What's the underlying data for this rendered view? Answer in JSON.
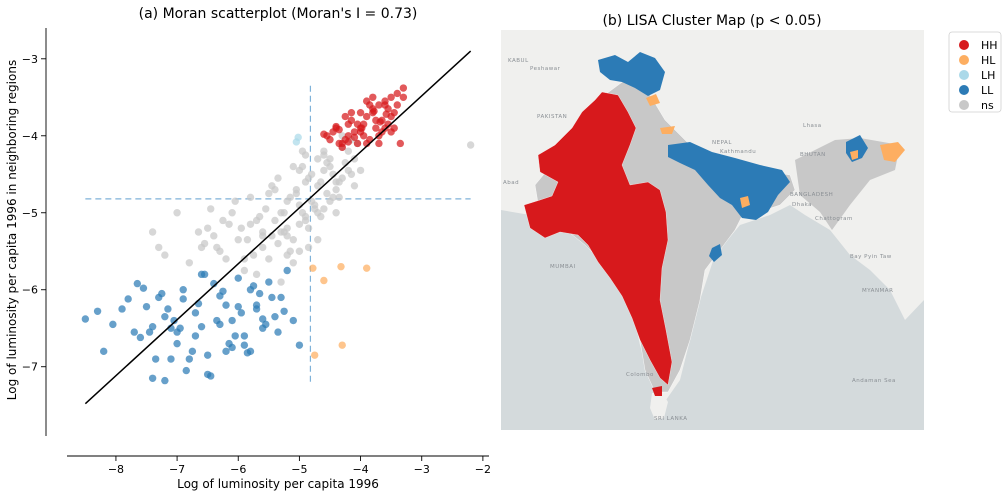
{
  "chart_data": [
    {
      "type": "scatter",
      "title": "(a) Moran scatterplot (Moran's I = 0.73)",
      "xlabel": "Log of luminosity per capita 1996",
      "ylabel": "Log of luminosity per capita 1996 in neighboring regions",
      "xlim": [
        -8.8,
        -1.9
      ],
      "ylim": [
        -7.9,
        -2.6
      ],
      "xticks": [
        -8,
        -7,
        -6,
        -5,
        -4,
        -3,
        -2
      ],
      "yticks": [
        -7,
        -6,
        -5,
        -4,
        -3
      ],
      "xtick_labels": [
        "−8",
        "−7",
        "−6",
        "−5",
        "−4",
        "−3",
        "−2"
      ],
      "ytick_labels": [
        "−7",
        "−6",
        "−5",
        "−4",
        "−3"
      ],
      "mean_lines": {
        "x": -4.82,
        "y": -4.82
      },
      "regression_line": {
        "x": [
          -8.5,
          -2.2
        ],
        "y": [
          -7.48,
          -2.9
        ]
      },
      "grid": false,
      "series": [
        {
          "key": "HH",
          "color": "#d7191c",
          "x": [
            -4.6,
            -4.5,
            -4.4,
            -4.3,
            -4.2,
            -4.1,
            -4.0,
            -3.9,
            -3.8,
            -3.7,
            -3.6,
            -3.5,
            -3.4,
            -3.3,
            -4.55,
            -4.35,
            -4.15,
            -3.95,
            -3.75,
            -3.55,
            -3.45,
            -3.65,
            -3.85,
            -4.05,
            -4.25,
            -4.45,
            -3.5,
            -3.6,
            -3.7,
            -3.8,
            -3.9,
            -4.0,
            -4.1,
            -4.2,
            -4.3,
            -3.4,
            -3.35,
            -3.55,
            -3.75,
            -3.95,
            -4.15,
            -4.35,
            -3.45,
            -3.65,
            -3.85,
            -4.05,
            -4.25,
            -3.6,
            -3.8,
            -4.0,
            -3.7,
            -3.9,
            -3.5,
            -4.4,
            -4.2,
            -3.3,
            -3.58,
            -3.78,
            -3.98,
            -3.68
          ],
          "y": [
            -3.98,
            -4.05,
            -3.9,
            -4.1,
            -3.85,
            -4.02,
            -3.95,
            -3.75,
            -3.7,
            -3.6,
            -3.55,
            -3.5,
            -3.45,
            -3.38,
            -4.0,
            -3.92,
            -3.8,
            -3.85,
            -3.9,
            -3.65,
            -3.7,
            -3.8,
            -3.6,
            -4.1,
            -4.05,
            -3.95,
            -3.75,
            -3.9,
            -4.0,
            -3.5,
            -4.1,
            -3.7,
            -3.95,
            -4.0,
            -4.15,
            -3.6,
            -4.1,
            -3.85,
            -3.8,
            -4.0,
            -3.7,
            -4.1,
            -3.9,
            -3.95,
            -4.05,
            -3.85,
            -3.75,
            -3.6,
            -3.65,
            -3.9,
            -4.1,
            -3.55,
            -3.95,
            -3.88,
            -4.08,
            -3.5,
            -3.72,
            -3.68,
            -3.9,
            -3.82
          ]
        },
        {
          "key": "LH",
          "color": "#abd9e9",
          "x": [
            -5.02,
            -5.05
          ],
          "y": [
            -4.02,
            -4.08
          ]
        },
        {
          "key": "HL",
          "color": "#fdae61",
          "x": [
            -4.78,
            -4.6,
            -4.32,
            -3.9,
            -4.3,
            -4.75
          ],
          "y": [
            -5.72,
            -5.88,
            -5.7,
            -5.72,
            -6.72,
            -6.85
          ]
        },
        {
          "key": "LL",
          "color": "#2c7bb6",
          "x": [
            -8.5,
            -8.3,
            -8.2,
            -8.05,
            -7.9,
            -7.8,
            -7.7,
            -7.6,
            -7.5,
            -7.4,
            -7.3,
            -7.2,
            -7.1,
            -7.0,
            -6.9,
            -6.8,
            -6.7,
            -6.6,
            -6.5,
            -6.4,
            -6.3,
            -6.2,
            -6.1,
            -6.0,
            -5.9,
            -5.8,
            -5.7,
            -5.6,
            -5.5,
            -5.4,
            -5.3,
            -5.2,
            -5.1,
            -5.0,
            -7.65,
            -7.45,
            -7.25,
            -7.05,
            -6.85,
            -6.65,
            -6.45,
            -6.25,
            -6.05,
            -5.85,
            -5.65,
            -5.45,
            -5.25,
            -7.35,
            -7.15,
            -6.95,
            -6.75,
            -6.55,
            -6.35,
            -6.15,
            -5.95,
            -5.75,
            -5.55,
            -5.35,
            -7.55,
            -6.9,
            -6.5,
            -6.1,
            -5.9,
            -6.6,
            -7.0,
            -7.2,
            -6.3,
            -5.7,
            -7.4,
            -6.2,
            -5.8,
            -6.0,
            -5.6,
            -6.7,
            -7.1
          ],
          "y": [
            -6.38,
            -6.28,
            -6.8,
            -6.45,
            -6.25,
            -6.12,
            -6.55,
            -6.62,
            -6.22,
            -7.15,
            -6.1,
            -6.35,
            -6.5,
            -6.7,
            -6.0,
            -6.9,
            -6.3,
            -6.48,
            -7.1,
            -5.92,
            -6.45,
            -6.2,
            -6.75,
            -5.85,
            -6.6,
            -6.8,
            -6.2,
            -6.5,
            -5.9,
            -6.35,
            -6.1,
            -5.75,
            -6.4,
            -6.72,
            -5.92,
            -6.55,
            -6.05,
            -6.4,
            -7.05,
            -6.18,
            -7.12,
            -6.02,
            -6.6,
            -6.82,
            -6.05,
            -6.1,
            -6.28,
            -6.9,
            -6.25,
            -6.5,
            -6.8,
            -5.8,
            -6.4,
            -6.7,
            -6.3,
            -5.95,
            -6.45,
            -6.55,
            -5.98,
            -6.12,
            -6.85,
            -6.4,
            -6.72,
            -5.8,
            -6.55,
            -7.18,
            -6.08,
            -6.25,
            -6.48,
            -6.8,
            -6.0,
            -6.22,
            -6.38,
            -6.6,
            -6.9
          ]
        },
        {
          "key": "ns",
          "color": "#c8c8c8",
          "x": [
            -7.4,
            -7.3,
            -7.2,
            -7.0,
            -6.8,
            -6.6,
            -6.5,
            -6.4,
            -6.3,
            -6.2,
            -6.1,
            -6.0,
            -5.9,
            -5.8,
            -5.7,
            -5.6,
            -5.5,
            -5.4,
            -5.3,
            -5.2,
            -5.1,
            -5.0,
            -4.9,
            -4.8,
            -4.7,
            -4.6,
            -4.5,
            -4.4,
            -4.3,
            -4.2,
            -4.1,
            -4.0,
            -6.45,
            -6.25,
            -6.05,
            -5.85,
            -5.65,
            -5.45,
            -5.25,
            -5.05,
            -4.85,
            -4.65,
            -4.45,
            -4.25,
            -4.05,
            -6.35,
            -6.15,
            -5.95,
            -5.75,
            -5.55,
            -5.35,
            -5.15,
            -4.95,
            -4.75,
            -4.55,
            -4.35,
            -4.15,
            -5.6,
            -5.4,
            -5.2,
            -5.0,
            -4.8,
            -4.6,
            -4.4,
            -4.2,
            -5.5,
            -5.3,
            -5.1,
            -4.9,
            -4.7,
            -4.5,
            -4.3,
            -5.8,
            -5.0,
            -4.7,
            -4.4,
            -4.1,
            -5.2,
            -4.9,
            -4.6,
            -4.3,
            -2.2,
            -5.35,
            -5.15,
            -4.95,
            -4.75,
            -5.45,
            -5.25,
            -5.05,
            -4.85,
            -4.65,
            -4.45,
            -6.55,
            -6.65,
            -5.9,
            -5.7,
            -5.3,
            -4.95,
            -4.55,
            -4.15,
            -5.1,
            -4.85,
            -4.6,
            -4.35,
            -5.6,
            -5.2,
            -4.9,
            -4.5,
            -5.0,
            -4.7
          ],
          "y": [
            -5.25,
            -5.45,
            -5.55,
            -5.0,
            -5.65,
            -5.45,
            -5.2,
            -5.3,
            -5.5,
            -5.6,
            -5.0,
            -5.35,
            -5.75,
            -4.8,
            -5.1,
            -5.3,
            -5.6,
            -4.7,
            -5.0,
            -5.2,
            -4.4,
            -4.9,
            -4.6,
            -4.5,
            -4.3,
            -4.2,
            -4.4,
            -4.6,
            -4.0,
            -4.2,
            -4.3,
            -4.45,
            -4.95,
            -5.1,
            -4.85,
            -5.35,
            -5.05,
            -4.65,
            -5.25,
            -4.7,
            -4.55,
            -4.6,
            -4.5,
            -4.35,
            -4.1,
            -5.45,
            -5.15,
            -5.2,
            -5.55,
            -4.95,
            -5.4,
            -5.5,
            -5.0,
            -4.9,
            -4.75,
            -4.8,
            -4.5,
            -5.45,
            -5.1,
            -5.3,
            -5.15,
            -4.85,
            -4.95,
            -4.7,
            -4.45,
            -4.75,
            -5.25,
            -5.35,
            -4.25,
            -4.65,
            -4.3,
            -4.15,
            -5.15,
            -5.5,
            -5.35,
            -5.0,
            -4.65,
            -4.85,
            -5.05,
            -4.25,
            -4.55,
            -4.12,
            -4.55,
            -4.8,
            -4.4,
            -4.95,
            -5.3,
            -5.0,
            -4.75,
            -5.2,
            -5.05,
            -4.8,
            -5.4,
            -5.25,
            -5.6,
            -5.8,
            -5.9,
            -4.2,
            -4.35,
            -4.05,
            -5.65,
            -5.45,
            -4.45,
            -4.6,
            -5.25,
            -5.55,
            -5.1,
            -4.85,
            -4.45,
            -5.0
          ]
        }
      ]
    },
    {
      "type": "map",
      "title": "(b) LISA Cluster Map (p < 0.05)",
      "legend": {
        "position": "top-right-outside",
        "entries": [
          {
            "label": "HH",
            "color": "#d7191c"
          },
          {
            "label": "HL",
            "color": "#fdae61"
          },
          {
            "label": "LH",
            "color": "#abd9e9"
          },
          {
            "label": "LL",
            "color": "#2c7bb6"
          },
          {
            "label": "ns",
            "color": "#c8c8c8"
          }
        ]
      },
      "place_labels": [
        "KABUL",
        "Peshawar",
        "PAKISTAN",
        "Lhasa",
        "NEPAL",
        "Kathmandu",
        "BHUTAN",
        "BANGLADESH",
        "Dhaka",
        "Chattogram",
        "MUMBAI",
        "Bay Pyin Taw",
        "MYANMAR",
        "Andaman Sea",
        "Colombo",
        "SRI LANKA",
        "Abad"
      ]
    }
  ]
}
